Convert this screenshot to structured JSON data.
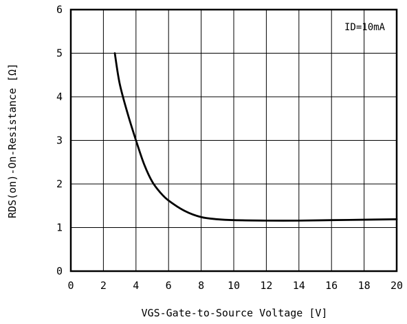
{
  "chart_data": {
    "type": "line",
    "title": "",
    "xlabel": "VGS-Gate-to-Source Voltage [V]",
    "ylabel": "RDS(on)-On-Resistance [Ω]",
    "xlim": [
      0,
      20
    ],
    "ylim": [
      0,
      6
    ],
    "x_ticks": [
      "0",
      "2",
      "4",
      "6",
      "8",
      "10",
      "12",
      "14",
      "16",
      "18",
      "20"
    ],
    "y_ticks": [
      "0",
      "1",
      "2",
      "3",
      "4",
      "5",
      "6"
    ],
    "grid": true,
    "annotation": "ID=10mA",
    "series": [
      {
        "x": [
          2.7,
          3.0,
          3.5,
          4.0,
          4.5,
          5.0,
          5.5,
          6.0,
          7.0,
          8.0,
          9.0,
          10.0,
          12.0,
          14.0,
          16.0,
          18.0,
          20.0
        ],
        "y": [
          5.0,
          4.3,
          3.6,
          3.0,
          2.45,
          2.05,
          1.8,
          1.62,
          1.38,
          1.24,
          1.19,
          1.17,
          1.16,
          1.16,
          1.17,
          1.18,
          1.19
        ],
        "color": "#000000"
      }
    ]
  }
}
